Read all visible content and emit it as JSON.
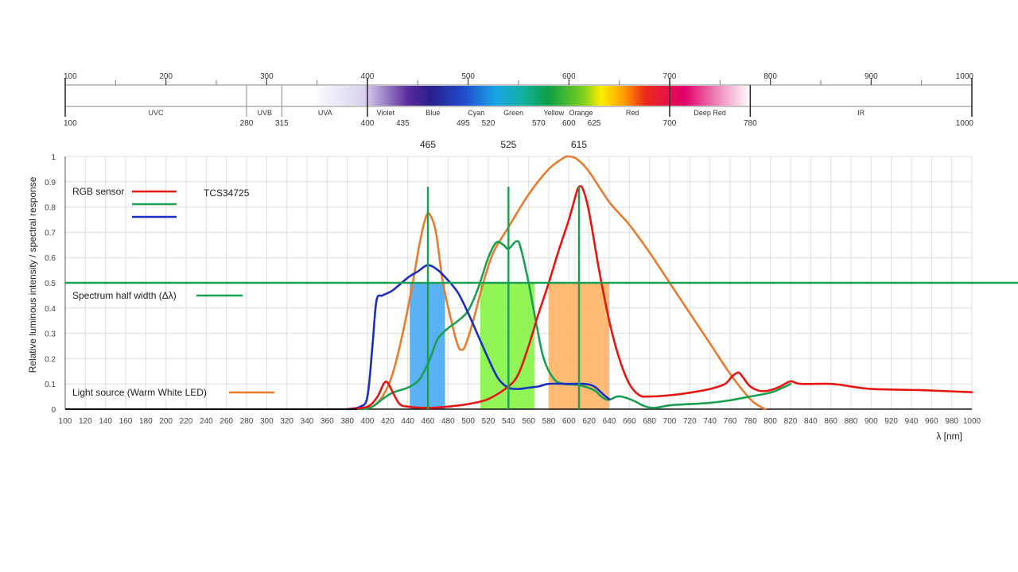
{
  "spectrum_bar": {
    "top_ticks": [
      "100",
      "200",
      "300",
      "400",
      "500",
      "600",
      "700",
      "800",
      "900",
      "1000"
    ],
    "bottom_labels": [
      {
        "text": "100",
        "nm": 100
      },
      {
        "text": "280",
        "nm": 280
      },
      {
        "text": "315",
        "nm": 315
      },
      {
        "text": "400",
        "nm": 400
      },
      {
        "text": "435",
        "nm": 435
      },
      {
        "text": "495",
        "nm": 495
      },
      {
        "text": "520",
        "nm": 520
      },
      {
        "text": "570",
        "nm": 570
      },
      {
        "text": "600",
        "nm": 600
      },
      {
        "text": "625",
        "nm": 625
      },
      {
        "text": "700",
        "nm": 700
      },
      {
        "text": "780",
        "nm": 780
      },
      {
        "text": "1000",
        "nm": 1000
      }
    ],
    "bands": [
      {
        "text": "UVC",
        "nm": 190
      },
      {
        "text": "UVB",
        "nm": 298
      },
      {
        "text": "UVA",
        "nm": 358
      },
      {
        "text": "Violet",
        "nm": 418
      },
      {
        "text": "Blue",
        "nm": 465
      },
      {
        "text": "Cyan",
        "nm": 508
      },
      {
        "text": "Green",
        "nm": 545
      },
      {
        "text": "Yellow",
        "nm": 585
      },
      {
        "text": "Orange",
        "nm": 612
      },
      {
        "text": "Red",
        "nm": 663
      },
      {
        "text": "Deep Red",
        "nm": 740
      },
      {
        "text": "IR",
        "nm": 890
      }
    ]
  },
  "chart_data": {
    "type": "line",
    "title": "",
    "xlabel": "λ [nm]",
    "ylabel": "Relative luminous intensity / spectral response",
    "xlim": [
      100,
      1000
    ],
    "ylim": [
      0,
      1
    ],
    "x_ticks": [
      100,
      120,
      140,
      160,
      180,
      200,
      220,
      240,
      260,
      280,
      300,
      320,
      340,
      360,
      380,
      400,
      420,
      440,
      460,
      480,
      500,
      520,
      540,
      560,
      580,
      600,
      620,
      640,
      660,
      680,
      700,
      720,
      740,
      760,
      780,
      800,
      820,
      840,
      860,
      880,
      900,
      920,
      940,
      960,
      980,
      1000
    ],
    "y_ticks": [
      0,
      0.1,
      0.2,
      0.3,
      0.4,
      0.5,
      0.6,
      0.7,
      0.8,
      0.9,
      1
    ],
    "y_tick_labels": [
      "0",
      "0.1",
      "0.2",
      "0.3",
      "0.4",
      "0.5",
      "0.6",
      "0.7",
      "0.8",
      "0.9",
      "1"
    ],
    "grid": true,
    "legend": [
      {
        "label": "RGB sensor",
        "color": "#e8140f"
      },
      {
        "label": "",
        "color": "#1aa050"
      },
      {
        "label": "",
        "color": "#1b2fc2"
      },
      {
        "label": "Spectrum half width (Δλ)",
        "color": "#1aa050"
      },
      {
        "label": "Light source (Warm White LED)",
        "color": "#e87b2e"
      }
    ],
    "annotation": "TCS34725",
    "peak_labels": [
      {
        "text": "465",
        "x": 460
      },
      {
        "text": "525",
        "x": 540
      },
      {
        "text": "615",
        "x": 610
      }
    ],
    "half_line": 0.5,
    "half_width_bands": [
      {
        "x0": 442,
        "x1": 477,
        "color": "#3da5f2"
      },
      {
        "x0": 512,
        "x1": 566,
        "color": "#7ef23a"
      },
      {
        "x0": 580,
        "x1": 640,
        "color": "#ffae5a"
      }
    ],
    "series": [
      {
        "color": "#e8140f",
        "points": [
          [
            380,
            0
          ],
          [
            400,
            0.01
          ],
          [
            410,
            0.05
          ],
          [
            416,
            0.1
          ],
          [
            420,
            0.105
          ],
          [
            426,
            0.06
          ],
          [
            432,
            0.02
          ],
          [
            440,
            0.01
          ],
          [
            460,
            0.005
          ],
          [
            480,
            0.01
          ],
          [
            500,
            0.02
          ],
          [
            520,
            0.04
          ],
          [
            540,
            0.09
          ],
          [
            550,
            0.14
          ],
          [
            560,
            0.25
          ],
          [
            570,
            0.38
          ],
          [
            580,
            0.5
          ],
          [
            590,
            0.63
          ],
          [
            600,
            0.75
          ],
          [
            607,
            0.85
          ],
          [
            610,
            0.88
          ],
          [
            614,
            0.87
          ],
          [
            620,
            0.78
          ],
          [
            630,
            0.55
          ],
          [
            640,
            0.35
          ],
          [
            650,
            0.2
          ],
          [
            660,
            0.1
          ],
          [
            670,
            0.055
          ],
          [
            680,
            0.05
          ],
          [
            700,
            0.055
          ],
          [
            720,
            0.065
          ],
          [
            740,
            0.08
          ],
          [
            755,
            0.1
          ],
          [
            762,
            0.13
          ],
          [
            768,
            0.145
          ],
          [
            772,
            0.13
          ],
          [
            780,
            0.09
          ],
          [
            790,
            0.072
          ],
          [
            800,
            0.075
          ],
          [
            810,
            0.09
          ],
          [
            820,
            0.11
          ],
          [
            830,
            0.1
          ],
          [
            860,
            0.1
          ],
          [
            880,
            0.09
          ],
          [
            900,
            0.08
          ],
          [
            950,
            0.075
          ],
          [
            1000,
            0.067
          ]
        ]
      },
      {
        "color": "#1aa050",
        "points": [
          [
            395,
            0
          ],
          [
            405,
            0.01
          ],
          [
            415,
            0.04
          ],
          [
            425,
            0.065
          ],
          [
            440,
            0.085
          ],
          [
            450,
            0.11
          ],
          [
            455,
            0.14
          ],
          [
            460,
            0.18
          ],
          [
            465,
            0.23
          ],
          [
            470,
            0.28
          ],
          [
            480,
            0.32
          ],
          [
            490,
            0.35
          ],
          [
            500,
            0.39
          ],
          [
            510,
            0.48
          ],
          [
            520,
            0.6
          ],
          [
            528,
            0.66
          ],
          [
            535,
            0.65
          ],
          [
            540,
            0.635
          ],
          [
            548,
            0.665
          ],
          [
            552,
            0.64
          ],
          [
            560,
            0.5
          ],
          [
            568,
            0.33
          ],
          [
            575,
            0.2
          ],
          [
            585,
            0.12
          ],
          [
            595,
            0.1
          ],
          [
            610,
            0.095
          ],
          [
            625,
            0.075
          ],
          [
            632,
            0.05
          ],
          [
            638,
            0.037
          ],
          [
            642,
            0.04
          ],
          [
            648,
            0.05
          ],
          [
            655,
            0.047
          ],
          [
            665,
            0.032
          ],
          [
            675,
            0.012
          ],
          [
            685,
            0.005
          ],
          [
            700,
            0.015
          ],
          [
            720,
            0.02
          ],
          [
            740,
            0.025
          ],
          [
            760,
            0.035
          ],
          [
            780,
            0.05
          ],
          [
            800,
            0.065
          ],
          [
            815,
            0.09
          ],
          [
            820,
            0.1
          ]
        ]
      },
      {
        "color": "#1b2fc2",
        "points": [
          [
            380,
            0
          ],
          [
            393,
            0.01
          ],
          [
            400,
            0.05
          ],
          [
            405,
            0.25
          ],
          [
            409,
            0.43
          ],
          [
            415,
            0.45
          ],
          [
            425,
            0.47
          ],
          [
            440,
            0.52
          ],
          [
            450,
            0.545
          ],
          [
            460,
            0.57
          ],
          [
            470,
            0.55
          ],
          [
            480,
            0.51
          ],
          [
            490,
            0.46
          ],
          [
            500,
            0.38
          ],
          [
            510,
            0.29
          ],
          [
            520,
            0.2
          ],
          [
            530,
            0.12
          ],
          [
            540,
            0.085
          ],
          [
            550,
            0.08
          ],
          [
            560,
            0.085
          ],
          [
            570,
            0.09
          ],
          [
            580,
            0.1
          ],
          [
            600,
            0.1
          ],
          [
            615,
            0.1
          ],
          [
            625,
            0.09
          ],
          [
            635,
            0.055
          ],
          [
            640,
            0.04
          ]
        ]
      },
      {
        "color": "#e87b2e",
        "points": [
          [
            395,
            0
          ],
          [
            405,
            0.01
          ],
          [
            415,
            0.05
          ],
          [
            425,
            0.14
          ],
          [
            435,
            0.3
          ],
          [
            445,
            0.5
          ],
          [
            452,
            0.66
          ],
          [
            458,
            0.76
          ],
          [
            462,
            0.77
          ],
          [
            468,
            0.7
          ],
          [
            475,
            0.5
          ],
          [
            485,
            0.32
          ],
          [
            490,
            0.25
          ],
          [
            493,
            0.235
          ],
          [
            497,
            0.25
          ],
          [
            505,
            0.35
          ],
          [
            515,
            0.5
          ],
          [
            525,
            0.62
          ],
          [
            540,
            0.72
          ],
          [
            560,
            0.85
          ],
          [
            580,
            0.95
          ],
          [
            595,
            0.995
          ],
          [
            600,
            1
          ],
          [
            608,
            0.99
          ],
          [
            620,
            0.94
          ],
          [
            640,
            0.82
          ],
          [
            660,
            0.73
          ],
          [
            680,
            0.62
          ],
          [
            700,
            0.5
          ],
          [
            720,
            0.38
          ],
          [
            740,
            0.26
          ],
          [
            760,
            0.14
          ],
          [
            780,
            0.04
          ],
          [
            790,
            0.01
          ],
          [
            795,
            0
          ]
        ]
      }
    ],
    "vertical_markers": [
      460,
      540,
      610
    ]
  }
}
